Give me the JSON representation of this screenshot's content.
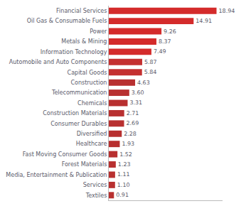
{
  "chart_data": {
    "type": "bar",
    "orientation": "horizontal",
    "categories": [
      "Financial Services",
      "Oil Gas & Consumable Fuels",
      "Power",
      "Metals & Mining",
      "Information Technology",
      "Automobile and Auto Components",
      "Capital Goods",
      "Construction",
      "Telecommunication",
      "Chemicals",
      "Construction Materials",
      "Consumer Durables",
      "Diversified",
      "Healthcare",
      "Fast Moving Consumer Goods",
      "Forest Materials",
      "Media, Entertainment & Publication",
      "Services",
      "Textiles"
    ],
    "values": [
      18.94,
      14.91,
      9.26,
      8.37,
      7.49,
      5.87,
      5.84,
      4.63,
      3.6,
      3.31,
      2.71,
      2.69,
      2.28,
      1.93,
      1.52,
      1.23,
      1.11,
      1.1,
      0.91
    ],
    "value_labels": [
      "18.94",
      "14.91",
      "9.26",
      "8.37",
      "7.49",
      "5.87",
      "5.84",
      "4.63",
      "3.60",
      "3.31",
      "2.71",
      "2.69",
      "2.28",
      "1.93",
      "1.52",
      "1.23",
      "1.11",
      "1.10",
      "0.91"
    ],
    "colors": [
      "#d42b2b",
      "#d42b2b",
      "#d42b2b",
      "#d42b2b",
      "#d42b2b",
      "#c43030",
      "#c43030",
      "#b83030",
      "#b83030",
      "#b83030",
      "#b83030",
      "#b83030",
      "#b83030",
      "#b83030",
      "#b83030",
      "#b83030",
      "#b83030",
      "#b83030",
      "#b83030"
    ],
    "xlim": [
      0,
      20
    ],
    "data_labels": true,
    "tick_labels": "y",
    "grid": false
  }
}
